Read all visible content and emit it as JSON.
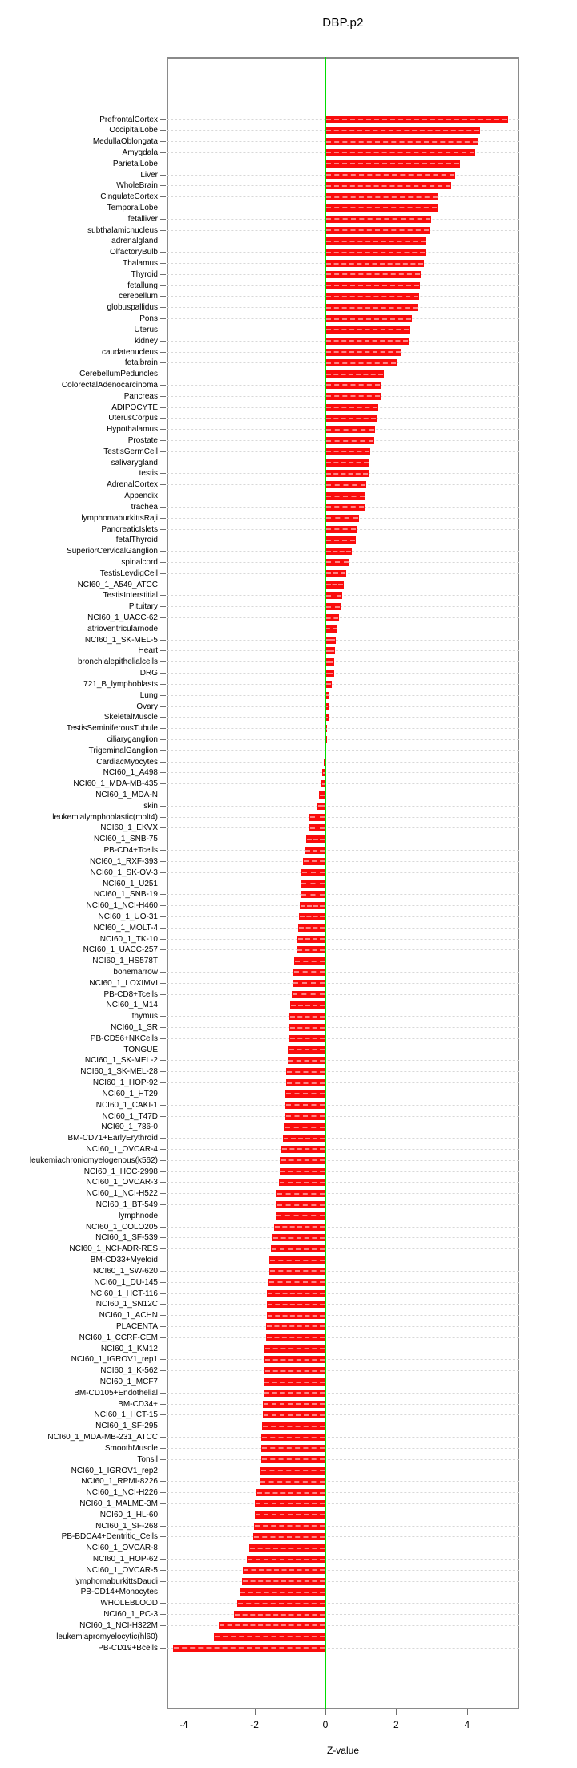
{
  "chart_data": {
    "type": "bar",
    "orientation": "horizontal",
    "title": "DBP.p2",
    "xlabel": "Z-value",
    "ylabel": "",
    "xlim": [
      -4.5,
      5.45
    ],
    "xticks": [
      -4,
      -2,
      0,
      2,
      4
    ],
    "grid": "dashed-horizontal-per-row",
    "legend": "none",
    "zero_reference_line": 0,
    "colors": {
      "bar": "#fa0c0c",
      "zero_line": "#00dd00",
      "gridline": "#d8d8d8",
      "axis_box": "#8a8a8a",
      "text": "#000000"
    },
    "categories": [
      "PrefrontalCortex",
      "OccipitalLobe",
      "MedullaOblongata",
      "Amygdala",
      "ParietalLobe",
      "Liver",
      "WholeBrain",
      "CingulateCortex",
      "TemporalLobe",
      "fetalliver",
      "subthalamicnucleus",
      "adrenalgland",
      "OlfactoryBulb",
      "Thalamus",
      "Thyroid",
      "fetallung",
      "cerebellum",
      "globuspallidus",
      "Pons",
      "Uterus",
      "kidney",
      "caudatenucleus",
      "fetalbrain",
      "CerebellumPeduncles",
      "ColorectalAdenocarcinoma",
      "Pancreas",
      "ADIPOCYTE",
      "UterusCorpus",
      "Hypothalamus",
      "Prostate",
      "TestisGermCell",
      "salivarygland",
      "testis",
      "AdrenalCortex",
      "Appendix",
      "trachea",
      "lymphomaburkittsRaji",
      "PancreaticIslets",
      "fetalThyroid",
      "SuperiorCervicalGanglion",
      "spinalcord",
      "TestisLeydigCell",
      "NCI60_1_A549_ATCC",
      "TestisInterstitial",
      "Pituitary",
      "NCI60_1_UACC-62",
      "atrioventricularnode",
      "NCI60_1_SK-MEL-5",
      "Heart",
      "bronchialepithelialcells",
      "DRG",
      "721_B_lymphoblasts",
      "Lung",
      "Ovary",
      "SkeletalMuscle",
      "TestisSeminiferousTubule",
      "ciliaryganglion",
      "TrigeminalGanglion",
      "CardiacMyocytes",
      "NCI60_1_A498",
      "NCI60_1_MDA-MB-435",
      "NCI60_1_MDA-N",
      "skin",
      "leukemialymphoblastic(molt4)",
      "NCI60_1_EKVX",
      "NCI60_1_SNB-75",
      "PB-CD4+Tcells",
      "NCI60_1_RXF-393",
      "NCI60_1_SK-OV-3",
      "NCI60_1_U251",
      "NCI60_1_SNB-19",
      "NCI60_1_NCI-H460",
      "NCI60_1_UO-31",
      "NCI60_1_MOLT-4",
      "NCI60_1_TK-10",
      "NCI60_1_UACC-257",
      "NCI60_1_HS578T",
      "bonemarrow",
      "NCI60_1_LOXIMVI",
      "PB-CD8+Tcells",
      "NCI60_1_M14",
      "thymus",
      "NCI60_1_SR",
      "PB-CD56+NKCells",
      "TONGUE",
      "NCI60_1_SK-MEL-2",
      "NCI60_1_SK-MEL-28",
      "NCI60_1_HOP-92",
      "NCI60_1_HT29",
      "NCI60_1_CAKI-1",
      "NCI60_1_T47D",
      "NCI60_1_786-0",
      "BM-CD71+EarlyErythroid",
      "NCI60_1_OVCAR-4",
      "leukemiachronicmyelogenous(k562)",
      "NCI60_1_HCC-2998",
      "NCI60_1_OVCAR-3",
      "NCI60_1_NCI-H522",
      "NCI60_1_BT-549",
      "lymphnode",
      "NCI60_1_COLO205",
      "NCI60_1_SF-539",
      "NCI60_1_NCI-ADR-RES",
      "BM-CD33+Myeloid",
      "NCI60_1_SW-620",
      "NCI60_1_DU-145",
      "NCI60_1_HCT-116",
      "NCI60_1_SN12C",
      "NCI60_1_ACHN",
      "PLACENTA",
      "NCI60_1_CCRF-CEM",
      "NCI60_1_KM12",
      "NCI60_1_IGROV1_rep1",
      "NCI60_1_K-562",
      "NCI60_1_MCF7",
      "BM-CD105+Endothelial",
      "BM-CD34+",
      "NCI60_1_HCT-15",
      "NCI60_1_SF-295",
      "NCI60_1_MDA-MB-231_ATCC",
      "SmoothMuscle",
      "Tonsil",
      "NCI60_1_IGROV1_rep2",
      "NCI60_1_RPMI-8226",
      "NCI60_1_NCI-H226",
      "NCI60_1_MALME-3M",
      "NCI60_1_HL-60",
      "NCI60_1_SF-268",
      "PB-BDCA4+Dentritic_Cells",
      "NCI60_1_OVCAR-8",
      "NCI60_1_HOP-62",
      "NCI60_1_OVCAR-5",
      "lymphomaburkittsDaudi",
      "PB-CD14+Monocytes",
      "WHOLEBLOOD",
      "NCI60_1_PC-3",
      "NCI60_1_NCI-H322M",
      "leukemiapromyelocytic(hl60)",
      "PB-CD19+Bcells"
    ],
    "values": [
      5.15,
      4.37,
      4.33,
      4.22,
      3.8,
      3.67,
      3.55,
      3.2,
      3.16,
      2.99,
      2.95,
      2.86,
      2.82,
      2.79,
      2.7,
      2.67,
      2.64,
      2.62,
      2.45,
      2.37,
      2.35,
      2.16,
      2.01,
      1.66,
      1.57,
      1.55,
      1.49,
      1.45,
      1.4,
      1.39,
      1.27,
      1.24,
      1.23,
      1.15,
      1.14,
      1.11,
      0.96,
      0.89,
      0.86,
      0.75,
      0.68,
      0.58,
      0.52,
      0.47,
      0.43,
      0.38,
      0.34,
      0.3,
      0.27,
      0.25,
      0.24,
      0.17,
      0.11,
      0.09,
      0.08,
      0.05,
      0.04,
      0.02,
      -0.04,
      -0.08,
      -0.12,
      -0.17,
      -0.23,
      -0.45,
      -0.46,
      -0.55,
      -0.59,
      -0.64,
      -0.67,
      -0.7,
      -0.71,
      -0.73,
      -0.75,
      -0.78,
      -0.8,
      -0.82,
      -0.88,
      -0.91,
      -0.93,
      -0.95,
      -1.0,
      -1.01,
      -1.02,
      -1.02,
      -1.03,
      -1.07,
      -1.1,
      -1.1,
      -1.12,
      -1.13,
      -1.14,
      -1.16,
      -1.2,
      -1.25,
      -1.27,
      -1.28,
      -1.32,
      -1.37,
      -1.38,
      -1.4,
      -1.45,
      -1.5,
      -1.54,
      -1.58,
      -1.59,
      -1.61,
      -1.65,
      -1.66,
      -1.66,
      -1.67,
      -1.68,
      -1.71,
      -1.72,
      -1.73,
      -1.74,
      -1.75,
      -1.77,
      -1.77,
      -1.78,
      -1.8,
      -1.81,
      -1.82,
      -1.83,
      -1.85,
      -1.95,
      -1.99,
      -2.0,
      -2.01,
      -2.03,
      -2.14,
      -2.22,
      -2.34,
      -2.35,
      -2.43,
      -2.5,
      -2.57,
      -3.02,
      -3.14,
      -4.3
    ]
  }
}
